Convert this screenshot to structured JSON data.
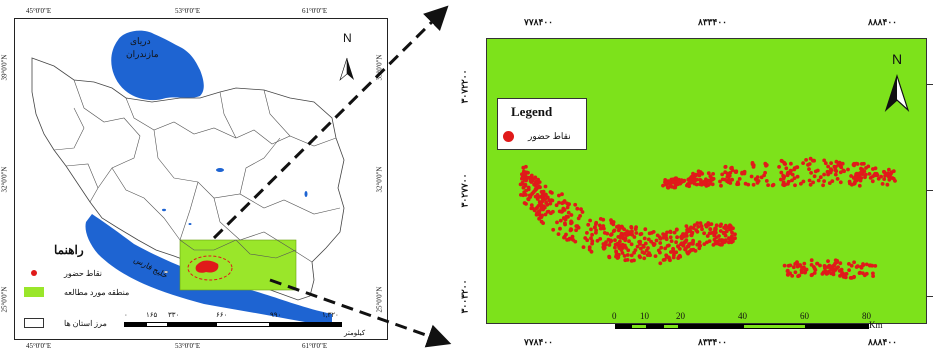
{
  "left_map": {
    "top_coords": [
      "45°0'0\"E",
      "53°0'0\"E",
      "61°0'0\"E"
    ],
    "bottom_coords": [
      "45°0'0\"E",
      "53°0'0\"E",
      "61°0'0\"E"
    ],
    "left_coords": [
      "39°0'0\"N",
      "32°0'0\"N",
      "25°0'0\"N"
    ],
    "right_coords": [
      "39°0'0\"N",
      "32°0'0\"N",
      "25°0'0\"N"
    ],
    "caspian_label_1": "دریای",
    "caspian_label_2": "مازندران",
    "gulf_label": "خلیج فارس",
    "north": "N",
    "legend_title": "راهنما",
    "legend_items": [
      "نقاط حضور",
      "منطقه مورد مطالعه",
      "مرز استان ها"
    ],
    "scale_ticks": [
      "۰",
      "۱۶۵",
      "۳۳۰",
      "۶۶۰",
      "۹۹۰",
      "۱,۳۲۰"
    ],
    "scale_unit": "کیلومتر"
  },
  "right_map": {
    "top_coords": [
      "۷۷۸۴۰۰",
      "۸۳۳۴۰۰",
      "۸۸۸۴۰۰"
    ],
    "bottom_coords": [
      "۷۷۸۴۰۰",
      "۸۳۳۴۰۰",
      "۸۸۸۴۰۰"
    ],
    "left_coords": [
      "۳۰۷۲۲۰۰",
      "۳۰۲۷۷۰۰",
      "۳۰۰۳۲۰۰"
    ],
    "north": "N",
    "legend_title": "Legend",
    "legend_item": "نقاط حضور",
    "scale_ticks": [
      "0",
      "10",
      "20",
      "40",
      "60",
      "80"
    ],
    "scale_unit": "Km"
  },
  "colors": {
    "water": "#1e64d2",
    "land": "#ffffff",
    "study_area": "#9ae62a",
    "points": "#e01a1a",
    "right_bg": "#7de21b"
  }
}
